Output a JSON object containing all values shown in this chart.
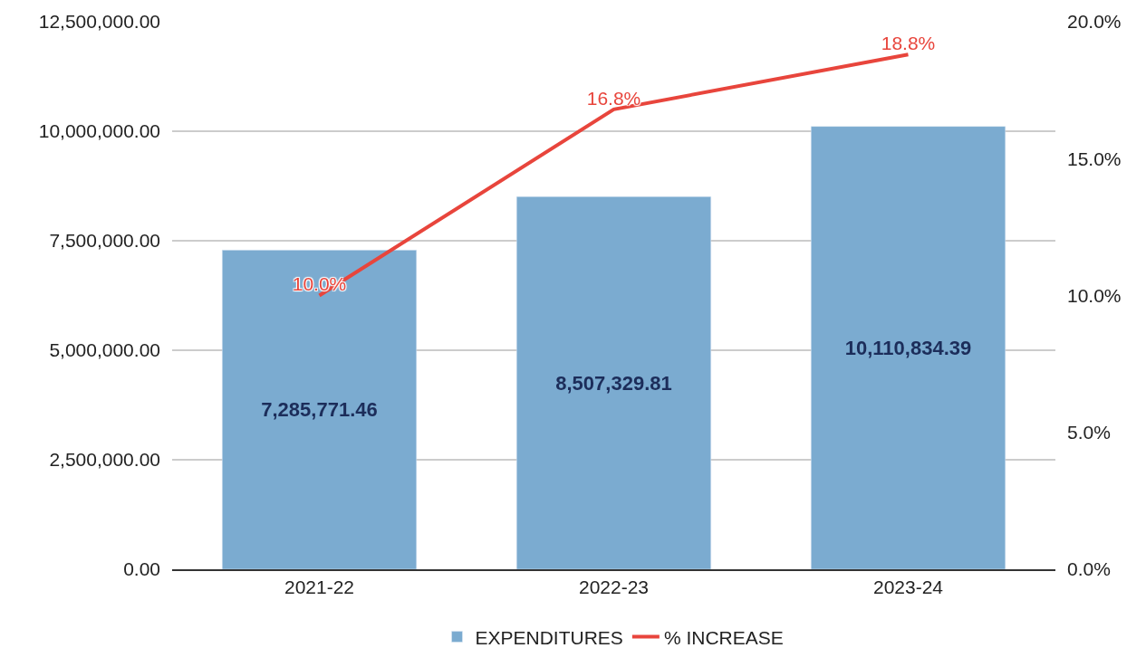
{
  "chart_data": {
    "type": "bar",
    "categories": [
      "2021-22",
      "2022-23",
      "2023-24"
    ],
    "series": [
      {
        "name": "EXPENDITURES",
        "color": "#7babd0",
        "values": [
          7285771.46,
          8507329.81,
          10110834.39
        ],
        "value_labels": [
          "7,285,771.46",
          "8,507,329.81",
          "10,110,834.39"
        ]
      },
      {
        "name": "% INCREASE",
        "type": "line",
        "axis": "y2",
        "color": "#e8453c",
        "values": [
          10.0,
          16.8,
          18.8
        ],
        "value_labels": [
          "10.0%",
          "16.8%",
          "18.8%"
        ]
      }
    ],
    "ylim": [
      0,
      12500000
    ],
    "yticks": [
      {
        "value": 0,
        "label": "0.00"
      },
      {
        "value": 2500000,
        "label": "2,500,000.00"
      },
      {
        "value": 5000000,
        "label": "5,000,000.00"
      },
      {
        "value": 7500000,
        "label": "7,500,000.00"
      },
      {
        "value": 10000000,
        "label": "10,000,000.00"
      },
      {
        "value": 12500000,
        "label": "12,500,000.00"
      }
    ],
    "y2lim": [
      0,
      20
    ],
    "y2ticks": [
      {
        "value": 0,
        "label": "0.0%"
      },
      {
        "value": 5,
        "label": "5.0%"
      },
      {
        "value": 10,
        "label": "10.0%"
      },
      {
        "value": 15,
        "label": "15.0%"
      },
      {
        "value": 20,
        "label": "20.0%"
      }
    ],
    "grid": "y",
    "legend": "bottom",
    "marker": "none",
    "line_style": "solid"
  }
}
